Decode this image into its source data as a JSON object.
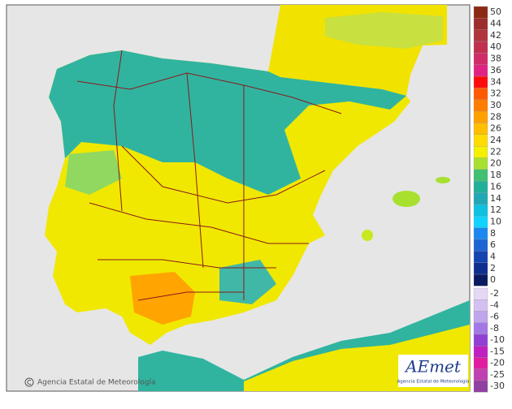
{
  "legend": {
    "entries": [
      {
        "label": "50",
        "color": "#8b2a14"
      },
      {
        "label": "44",
        "color": "#9e2c2c"
      },
      {
        "label": "42",
        "color": "#b0343c"
      },
      {
        "label": "40",
        "color": "#c0304e"
      },
      {
        "label": "38",
        "color": "#d02c68"
      },
      {
        "label": "36",
        "color": "#e02484"
      },
      {
        "label": "34",
        "color": "#ff0a0a"
      },
      {
        "label": "32",
        "color": "#ff5a00"
      },
      {
        "label": "30",
        "color": "#ff7e00"
      },
      {
        "label": "28",
        "color": "#ffa000"
      },
      {
        "label": "26",
        "color": "#ffbe00"
      },
      {
        "label": "24",
        "color": "#ffdc00"
      },
      {
        "label": "22",
        "color": "#f4f000"
      },
      {
        "label": "20",
        "color": "#a8e030"
      },
      {
        "label": "18",
        "color": "#40c070"
      },
      {
        "label": "16",
        "color": "#20b09a"
      },
      {
        "label": "14",
        "color": "#20a8b4"
      },
      {
        "label": "12",
        "color": "#10c0e0"
      },
      {
        "label": "10",
        "color": "#10d4ff"
      },
      {
        "label": "8",
        "color": "#1a88f0"
      },
      {
        "label": "6",
        "color": "#1c64d4"
      },
      {
        "label": "4",
        "color": "#1444b0"
      },
      {
        "label": "2",
        "color": "#102e90"
      },
      {
        "label": "0",
        "color": "#0a1a60"
      }
    ],
    "negative_entries": [
      {
        "label": "-2",
        "color": "#e4d8f4"
      },
      {
        "label": "-4",
        "color": "#d4c0f0"
      },
      {
        "label": "-6",
        "color": "#c0a4ec"
      },
      {
        "label": "-8",
        "color": "#a478e4"
      },
      {
        "label": "-10",
        "color": "#9040d4"
      },
      {
        "label": "-15",
        "color": "#c020c0"
      },
      {
        "label": "-20",
        "color": "#e01ca0"
      },
      {
        "label": "-25",
        "color": "#c040b0"
      },
      {
        "label": "-30",
        "color": "#9040a0"
      }
    ]
  },
  "credit": "Agencia Estatal de Meteorología",
  "logo": {
    "name": "AEmet",
    "subtitle": "Agencia Estatal de Meteorología"
  }
}
